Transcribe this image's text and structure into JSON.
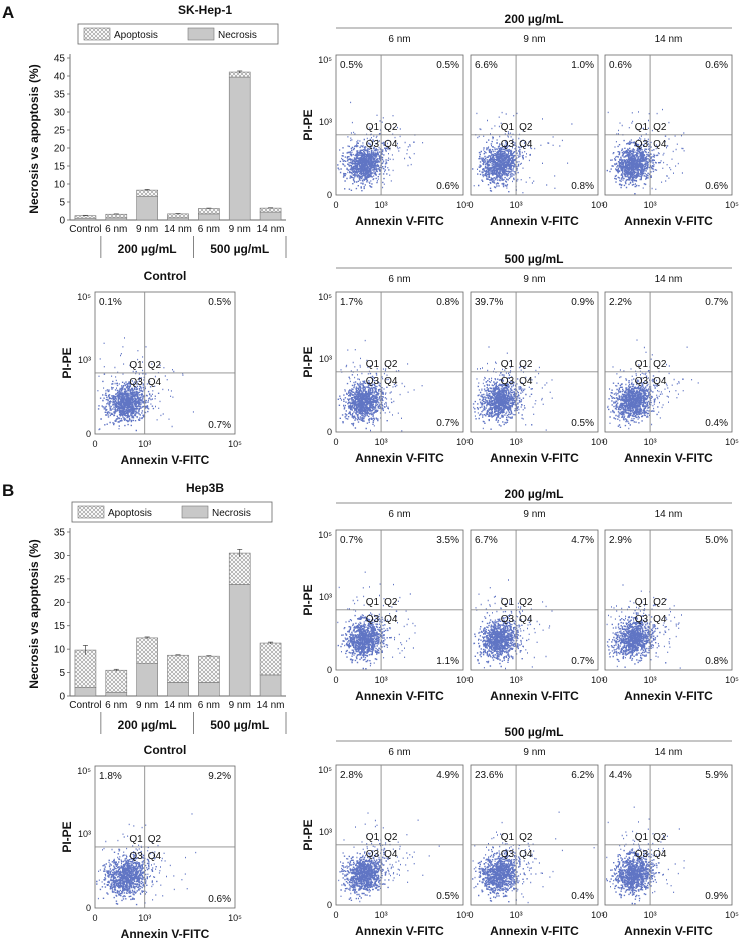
{
  "colors": {
    "necrosis_fill": "#c8c8c8",
    "axis": "#666666",
    "quad_line": "#8a8a8a",
    "dots": "#2b47b0",
    "text": "#111111"
  },
  "common": {
    "y_axis_label": "PI-PE",
    "x_axis_label": "Annexin V-FITC",
    "x_ticks": [
      "0",
      "10³",
      "10⁵"
    ],
    "y_ticks": [
      "0",
      "10³",
      "10⁵"
    ],
    "quadrant_labels": [
      "Q1",
      "Q2",
      "Q3",
      "Q4"
    ],
    "bar_ylabel": "Necrosis vs apoptosis (%)",
    "legend": [
      "Apoptosis",
      "Necrosis"
    ],
    "bar_categories": [
      "Control",
      "6 nm",
      "9 nm",
      "14 nm",
      "6 nm",
      "9 nm",
      "14 nm"
    ],
    "group_labels": [
      "200 µg/mL",
      "500 µg/mL"
    ]
  },
  "chart_data": [
    {
      "panel": "A",
      "type": "bar",
      "stacked": true,
      "title": "SK-Hep-1",
      "xlabel": "",
      "ylabel": "Necrosis vs apoptosis (%)",
      "categories": [
        "Control",
        "6 nm",
        "9 nm",
        "14 nm",
        "6 nm",
        "9 nm",
        "14 nm"
      ],
      "groups": [
        {
          "label": "200 µg/mL",
          "categories": [
            "6 nm",
            "9 nm",
            "14 nm"
          ]
        },
        {
          "label": "500 µg/mL",
          "categories": [
            "6 nm",
            "9 nm",
            "14 nm"
          ]
        }
      ],
      "ylim": [
        0,
        45
      ],
      "yticks": [
        0,
        5,
        10,
        15,
        20,
        25,
        30,
        35,
        40,
        45
      ],
      "series": [
        {
          "name": "Necrosis",
          "values": [
            0.5,
            0.6,
            6.6,
            0.6,
            1.7,
            39.7,
            2.2
          ]
        },
        {
          "name": "Apoptosis",
          "values": [
            0.7,
            1.0,
            1.7,
            1.1,
            1.5,
            1.4,
            1.1
          ]
        }
      ],
      "error_bars": [
        0.1,
        0.1,
        0.2,
        0.1,
        0.1,
        0.3,
        0.1
      ]
    },
    {
      "panel": "B",
      "type": "bar",
      "stacked": true,
      "title": "Hep3B",
      "xlabel": "",
      "ylabel": "Necrosis vs apoptosis (%)",
      "categories": [
        "Control",
        "6 nm",
        "9 nm",
        "14 nm",
        "6 nm",
        "9 nm",
        "14 nm"
      ],
      "groups": [
        {
          "label": "200 µg/mL",
          "categories": [
            "6 nm",
            "9 nm",
            "14 nm"
          ]
        },
        {
          "label": "500 µg/mL",
          "categories": [
            "6 nm",
            "9 nm",
            "14 nm"
          ]
        }
      ],
      "ylim": [
        0,
        35
      ],
      "yticks": [
        0,
        5,
        10,
        15,
        20,
        25,
        30,
        35
      ],
      "series": [
        {
          "name": "Necrosis",
          "values": [
            1.8,
            0.8,
            6.9,
            2.9,
            2.9,
            23.8,
            4.5
          ]
        },
        {
          "name": "Apoptosis",
          "values": [
            8.0,
            4.7,
            5.5,
            5.8,
            5.6,
            6.7,
            6.8
          ]
        }
      ],
      "error_bars": [
        1.0,
        0.2,
        0.2,
        0.1,
        0.1,
        0.8,
        0.2
      ]
    },
    {
      "panel": "A",
      "type": "scatter",
      "subtype": "flow_cytometry",
      "condition": "Control",
      "title": "Control",
      "xlabel": "Annexin V-FITC",
      "ylabel": "PI-PE",
      "quadrants": {
        "Q1": "0.1%",
        "Q2": "0.5%",
        "Q4": "0.7%"
      }
    },
    {
      "panel": "A",
      "type": "scatter",
      "subtype": "flow_cytometry",
      "group_title": "200 µg/mL",
      "plots": [
        {
          "title": "6 nm",
          "quadrants": {
            "Q1": "0.5%",
            "Q2": "0.5%",
            "Q4": "0.6%"
          }
        },
        {
          "title": "9 nm",
          "quadrants": {
            "Q1": "6.6%",
            "Q2": "1.0%",
            "Q4": "0.8%"
          }
        },
        {
          "title": "14 nm",
          "quadrants": {
            "Q1": "0.6%",
            "Q2": "0.6%",
            "Q4": "0.6%"
          }
        }
      ]
    },
    {
      "panel": "A",
      "type": "scatter",
      "subtype": "flow_cytometry",
      "group_title": "500 µg/mL",
      "plots": [
        {
          "title": "6 nm",
          "quadrants": {
            "Q1": "1.7%",
            "Q2": "0.8%",
            "Q4": "0.7%"
          }
        },
        {
          "title": "9 nm",
          "quadrants": {
            "Q1": "39.7%",
            "Q2": "0.9%",
            "Q4": "0.5%"
          }
        },
        {
          "title": "14 nm",
          "quadrants": {
            "Q1": "2.2%",
            "Q2": "0.7%",
            "Q4": "0.4%"
          }
        }
      ]
    },
    {
      "panel": "B",
      "type": "scatter",
      "subtype": "flow_cytometry",
      "condition": "Control",
      "title": "Control",
      "xlabel": "Annexin V-FITC",
      "ylabel": "PI-PE",
      "quadrants": {
        "Q1": "1.8%",
        "Q2": "9.2%",
        "Q4": "0.6%"
      }
    },
    {
      "panel": "B",
      "type": "scatter",
      "subtype": "flow_cytometry",
      "group_title": "200 µg/mL",
      "plots": [
        {
          "title": "6 nm",
          "quadrants": {
            "Q1": "0.7%",
            "Q2": "3.5%",
            "Q4": "1.1%"
          }
        },
        {
          "title": "9 nm",
          "quadrants": {
            "Q1": "6.7%",
            "Q2": "4.7%",
            "Q4": "0.7%"
          }
        },
        {
          "title": "14 nm",
          "quadrants": {
            "Q1": "2.9%",
            "Q2": "5.0%",
            "Q4": "0.8%"
          }
        }
      ]
    },
    {
      "panel": "B",
      "type": "scatter",
      "subtype": "flow_cytometry",
      "group_title": "500 µg/mL",
      "plots": [
        {
          "title": "6 nm",
          "quadrants": {
            "Q1": "2.8%",
            "Q2": "4.9%",
            "Q4": "0.5%"
          }
        },
        {
          "title": "9 nm",
          "quadrants": {
            "Q1": "23.6%",
            "Q2": "6.2%",
            "Q4": "0.4%"
          }
        },
        {
          "title": "14 nm",
          "quadrants": {
            "Q1": "4.4%",
            "Q2": "5.9%",
            "Q4": "0.9%"
          }
        }
      ]
    }
  ]
}
